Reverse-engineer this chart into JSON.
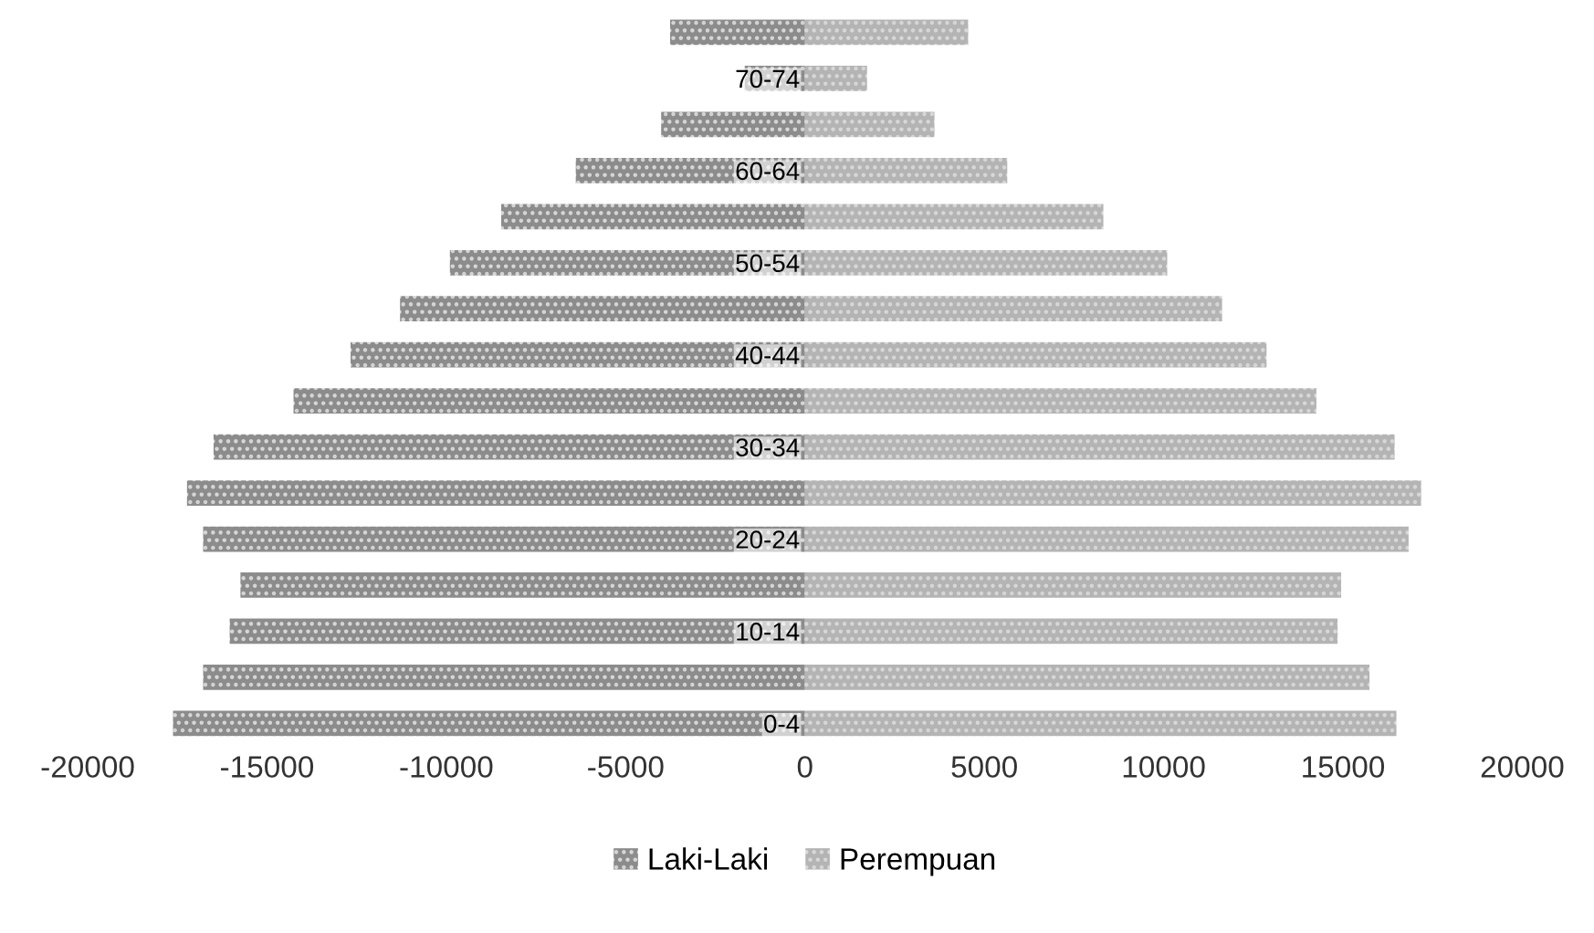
{
  "chart_data": {
    "type": "bar",
    "orientation": "horizontal",
    "stacked": true,
    "categories": [
      null,
      "70-74",
      null,
      "60-64",
      null,
      "50-54",
      null,
      "40-44",
      null,
      "30-34",
      null,
      "20-24",
      null,
      "10-14",
      null,
      "0-4"
    ],
    "series": [
      {
        "name": "Laki-Laki",
        "color": "#8c8c8c",
        "values": [
          -3760,
          -1680,
          -4010,
          -6390,
          -8470,
          -9900,
          -11290,
          -12670,
          -14260,
          -16490,
          -17230,
          -16780,
          -15740,
          -16040,
          -16780,
          -17620
        ]
      },
      {
        "name": "Perempuan",
        "color": "#b4b4b4",
        "values": [
          4550,
          1730,
          3610,
          5640,
          8320,
          10100,
          11630,
          12870,
          14260,
          16440,
          17180,
          16830,
          14950,
          14850,
          15740,
          16490
        ]
      }
    ],
    "xlim": [
      -20000,
      20000
    ],
    "xticks": [
      -20000,
      -15000,
      -10000,
      -5000,
      0,
      5000,
      10000,
      15000,
      20000
    ],
    "grid": false,
    "legend": "bottom"
  }
}
